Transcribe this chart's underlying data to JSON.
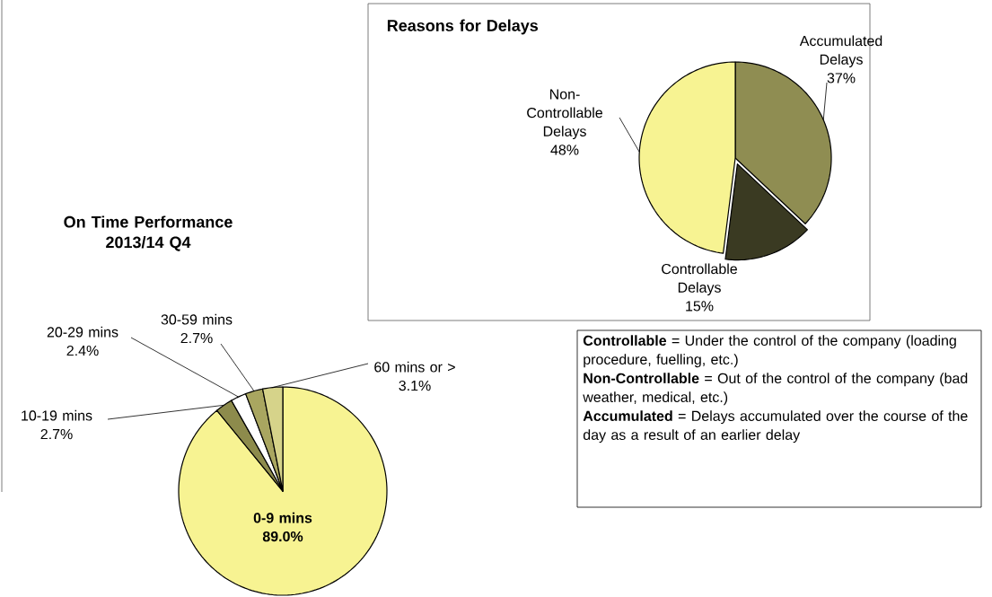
{
  "chart_data": [
    {
      "type": "pie",
      "title": "On Time Performance 2013/14 Q4",
      "categories": [
        "0-9 mins",
        "10-19 mins",
        "20-29 mins",
        "30-59 mins",
        "60 mins or >"
      ],
      "values": [
        89.0,
        2.7,
        2.4,
        2.7,
        3.1
      ],
      "value_labels": [
        "89.0%",
        "2.7%",
        "2.4%",
        "2.7%",
        "3.1%"
      ],
      "colors": [
        "#f7f392",
        "#8d8b4c",
        "#ffffff",
        "#a9a660",
        "#d6d38a"
      ]
    },
    {
      "type": "pie",
      "title": "Reasons for Delays",
      "categories": [
        "Accumulated Delays",
        "Controllable Delays",
        "Non-Controllable Delays"
      ],
      "values": [
        37,
        15,
        48
      ],
      "value_labels": [
        "37%",
        "15%",
        "48%"
      ],
      "colors": [
        "#8f8d52",
        "#3a3a22",
        "#f7f392"
      ]
    },
    {
      "type": "other",
      "annotations": [
        "**Controllable** = Under the control of the company (loading procedure, fuelling, etc.)",
        "**Non-Controllable** = Out of the control of the company (bad weather, medical, etc.)",
        "**Accumulated** = Delays accumulated over the course of the day as a result of an earlier delay"
      ]
    }
  ]
}
